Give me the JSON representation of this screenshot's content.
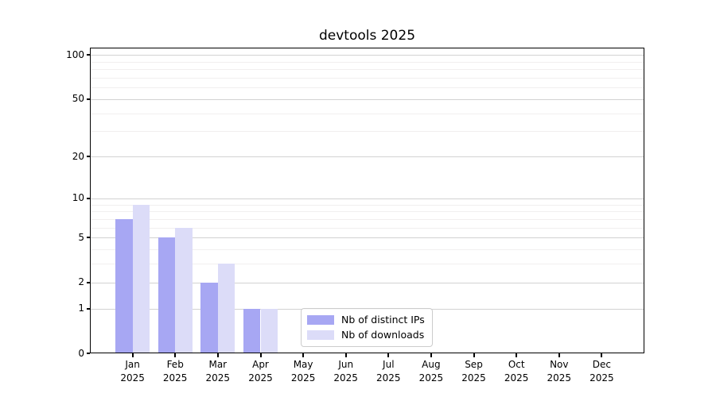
{
  "chart_data": {
    "type": "bar",
    "title": "devtools 2025",
    "categories": [
      "Jan\n2025",
      "Feb\n2025",
      "Mar\n2025",
      "Apr\n2025",
      "May\n2025",
      "Jun\n2025",
      "Jul\n2025",
      "Aug\n2025",
      "Sep\n2025",
      "Oct\n2025",
      "Nov\n2025",
      "Dec\n2025"
    ],
    "series": [
      {
        "name": "Nb of distinct IPs",
        "color": "#a7a7f3",
        "values": [
          7,
          5,
          2,
          1,
          0,
          0,
          0,
          0,
          0,
          0,
          0,
          0
        ]
      },
      {
        "name": "Nb of downloads",
        "color": "#dcdcf8",
        "values": [
          9,
          6,
          3,
          1,
          0,
          0,
          0,
          0,
          0,
          0,
          0,
          0
        ]
      }
    ],
    "xlabel": "",
    "ylabel": "",
    "yscale": "log1p",
    "ylim": [
      0,
      112
    ],
    "y_major_ticks": [
      0,
      1,
      2,
      5,
      10,
      20,
      50,
      100
    ],
    "y_minor_ticks": [
      3,
      4,
      6,
      7,
      8,
      9,
      30,
      40,
      60,
      70,
      80,
      90
    ],
    "grid": "horizontal",
    "legend_position": "lower center inside"
  },
  "style": {
    "grid_major_color": "#d2d2d2",
    "grid_minor_color": "#f1efef",
    "axis_color": "#000000",
    "text_color": "#000000",
    "legend_border_color": "#cccccc",
    "background": "#ffffff"
  }
}
